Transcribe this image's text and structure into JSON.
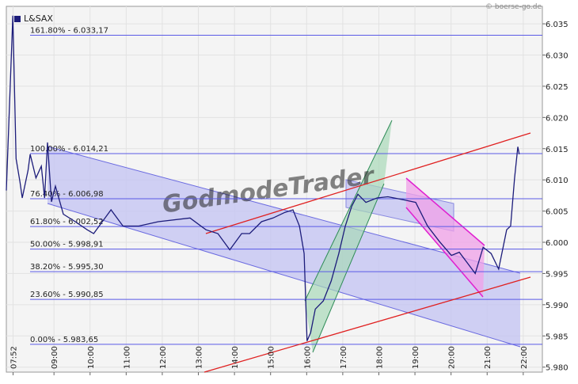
{
  "chart_data": {
    "type": "line",
    "source": "© boerse-go.de",
    "watermark": "GodmodeTrader",
    "grid": true,
    "series": [
      {
        "name": "L&SAX",
        "color": "#1c1c7a",
        "x": [
          7.68,
          7.86,
          7.95,
          8.06,
          8.12,
          8.28,
          8.34,
          8.5,
          8.65,
          8.74,
          8.82,
          8.93,
          9.04,
          9.26,
          9.59,
          9.92,
          10.1,
          10.58,
          10.91,
          11.35,
          11.89,
          12.77,
          13.21,
          13.54,
          13.87,
          14.2,
          14.42,
          14.75,
          15.07,
          15.4,
          15.62,
          15.8,
          15.93,
          16.01,
          16.11,
          16.24,
          16.46,
          16.68,
          16.89,
          17.07,
          17.25,
          17.42,
          17.64,
          17.95,
          18.25,
          18.69,
          19.02,
          19.35,
          19.68,
          20.01,
          20.23,
          20.45,
          20.67,
          20.89,
          21.11,
          21.32,
          21.54,
          21.65,
          21.76,
          21.85,
          21.89
        ],
        "values": [
          6.0083,
          6.0363,
          6.0134,
          6.0096,
          6.0071,
          6.0115,
          6.0141,
          6.0103,
          6.0122,
          6.0071,
          6.016,
          6.0065,
          6.009,
          6.0045,
          6.0033,
          6.002,
          6.0014,
          6.0052,
          6.0026,
          6.0026,
          6.0033,
          6.0039,
          6.002,
          6.0014,
          5.9988,
          6.0014,
          6.0014,
          6.0033,
          6.0039,
          6.0048,
          6.0052,
          6.0026,
          5.9982,
          5.9842,
          5.9855,
          5.9893,
          5.9906,
          5.9938,
          5.9982,
          6.0026,
          6.0058,
          6.0077,
          6.0064,
          6.0071,
          6.0073,
          6.0068,
          6.0064,
          6.0026,
          6.0001,
          5.9979,
          5.9984,
          5.9967,
          5.995,
          5.9992,
          5.9982,
          5.9957,
          6.002,
          6.0026,
          6.0103,
          6.0153,
          6.0141
        ]
      }
    ],
    "xlim": [
      7.68,
      22.53
    ],
    "xticks": [
      {
        "value": 7.8667,
        "label": "07:52"
      },
      {
        "value": 9,
        "label": "09:00"
      },
      {
        "value": 10,
        "label": "10:00"
      },
      {
        "value": 11,
        "label": "11:00"
      },
      {
        "value": 12,
        "label": "12:00"
      },
      {
        "value": 13,
        "label": "13:00"
      },
      {
        "value": 14,
        "label": "14:00"
      },
      {
        "value": 15,
        "label": "15:00"
      },
      {
        "value": 16,
        "label": "16:00"
      },
      {
        "value": 17,
        "label": "17:00"
      },
      {
        "value": 18,
        "label": "18:00"
      },
      {
        "value": 19,
        "label": "19:00"
      },
      {
        "value": 20,
        "label": "20:00"
      },
      {
        "value": 21,
        "label": "21:00"
      },
      {
        "value": 22,
        "label": "22:00"
      }
    ],
    "ylim": [
      5.9792,
      6.0378
    ],
    "yticks": [
      {
        "value": 5.98,
        "label": "5.980"
      },
      5.985,
      {
        "value": 5.99,
        "label": "5.990"
      },
      5.995,
      {
        "value": 6,
        "label": "6.000"
      },
      6.005,
      {
        "value": 6.01,
        "label": "6.010"
      },
      6.015,
      {
        "value": 6.02,
        "label": "6.020"
      },
      6.025,
      {
        "value": 6.03,
        "label": "6.030"
      },
      6.035
    ],
    "fib_levels": [
      {
        "label": "161.80% - 6.033,17",
        "value": 6.03317
      },
      {
        "label": "100.00% - 6.014,21",
        "value": 6.01421
      },
      {
        "label": "76.40% - 6.006,98",
        "value": 6.00698
      },
      {
        "label": "61.80% - 6.002,52",
        "value": 6.00252
      },
      {
        "label": "50.00% - 5.998,91",
        "value": 5.99891
      },
      {
        "label": "38.20% - 5.995,30",
        "value": 5.9953
      },
      {
        "label": "23.60% - 5.990,85",
        "value": 5.99085
      },
      {
        "label": "0.00% - 5.983,65",
        "value": 5.98365
      }
    ]
  }
}
